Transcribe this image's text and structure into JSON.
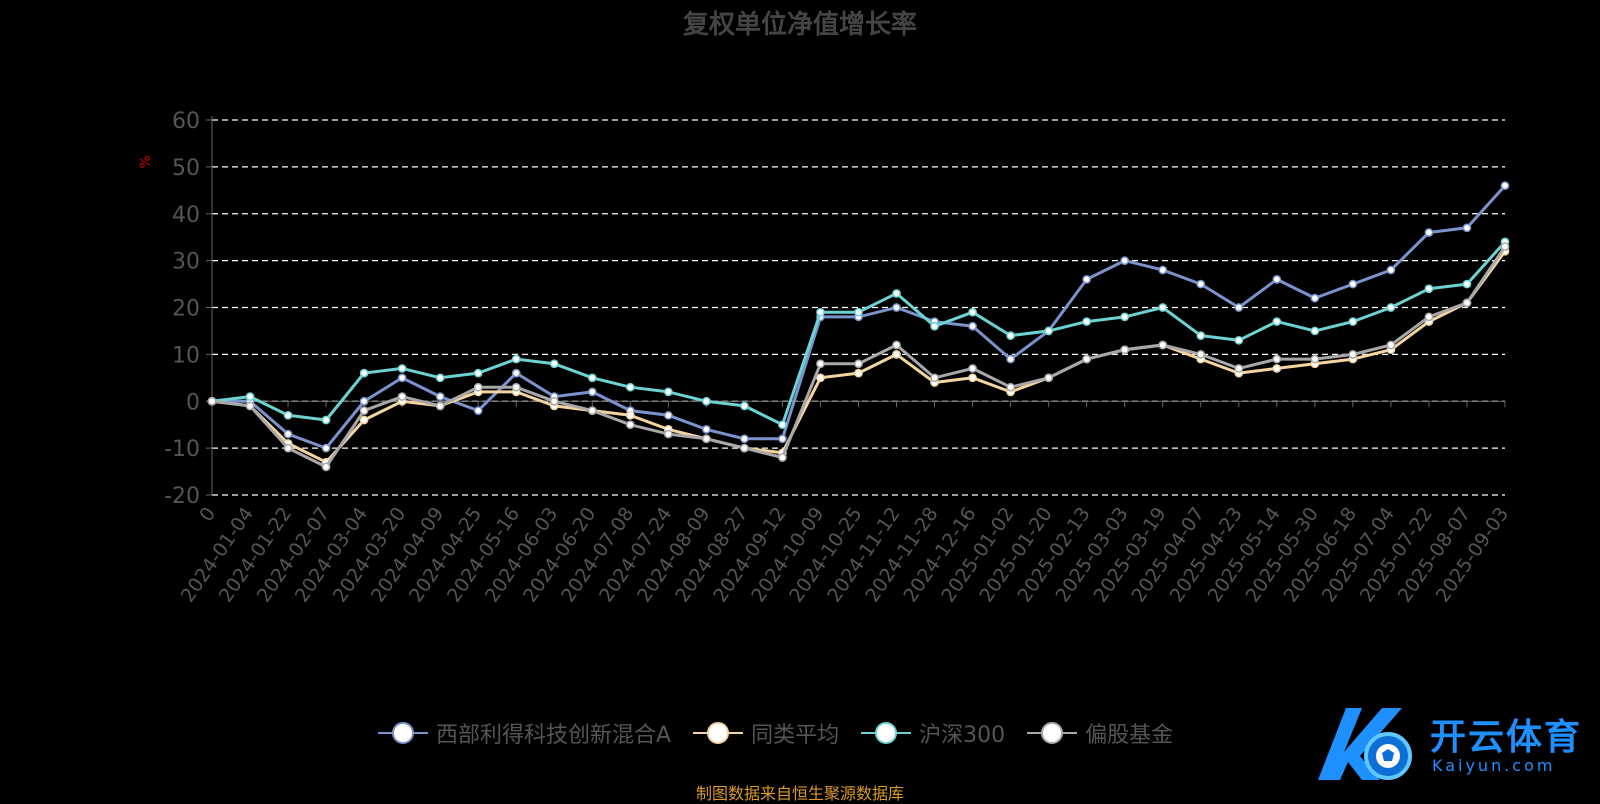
{
  "chart_data": {
    "type": "line",
    "title": "复权单位净值增长率",
    "ylabel": "%",
    "ylim": [
      -20,
      60
    ],
    "yticks": [
      -20,
      -10,
      0,
      10,
      20,
      30,
      40,
      50,
      60
    ],
    "grid": true,
    "legend_position": "bottom",
    "x": [
      "0",
      "2024-01-04",
      "2024-01-22",
      "2024-02-07",
      "2024-03-04",
      "2024-03-20",
      "2024-04-09",
      "2024-04-25",
      "2024-05-16",
      "2024-06-03",
      "2024-06-20",
      "2024-07-08",
      "2024-07-24",
      "2024-08-09",
      "2024-08-27",
      "2024-09-12",
      "2024-10-09",
      "2024-10-25",
      "2024-11-12",
      "2024-11-28",
      "2024-12-16",
      "2025-01-02",
      "2025-01-20",
      "2025-02-13",
      "2025-03-03",
      "2025-03-19",
      "2025-04-07",
      "2025-04-23",
      "2025-05-14",
      "2025-05-30",
      "2025-06-18",
      "2025-07-04",
      "2025-07-22",
      "2025-08-07",
      "2025-09-03"
    ],
    "series": [
      {
        "name": "西部利得科技创新混合A",
        "color": "#7b93cc",
        "values": [
          0,
          0,
          -7,
          -10,
          0,
          5,
          1,
          -2,
          6,
          1,
          2,
          -2,
          -3,
          -6,
          -8,
          -8,
          18,
          18,
          20,
          17,
          16,
          9,
          15,
          26,
          30,
          28,
          25,
          20,
          26,
          22,
          25,
          28,
          36,
          37,
          46
        ]
      },
      {
        "name": "同类平均",
        "color": "#f4d4a0",
        "values": [
          0,
          -1,
          -9,
          -13,
          -4,
          0,
          -1,
          2,
          2,
          -1,
          -2,
          -3,
          -6,
          -8,
          -10,
          -11,
          5,
          6,
          10,
          4,
          5,
          2,
          5,
          9,
          11,
          12,
          9,
          6,
          7,
          8,
          9,
          11,
          17,
          21,
          32
        ]
      },
      {
        "name": "沪深300",
        "color": "#6cd2d2",
        "values": [
          0,
          1,
          -3,
          -4,
          6,
          7,
          5,
          6,
          9,
          8,
          5,
          3,
          2,
          0,
          -1,
          -5,
          19,
          19,
          23,
          16,
          19,
          14,
          15,
          17,
          18,
          20,
          14,
          13,
          17,
          15,
          17,
          20,
          24,
          25,
          34
        ]
      },
      {
        "name": "偏股基金",
        "color": "#a8a8a8",
        "values": [
          0,
          -1,
          -10,
          -14,
          -2,
          1,
          -1,
          3,
          3,
          0,
          -2,
          -5,
          -7,
          -8,
          -10,
          -12,
          8,
          8,
          12,
          5,
          7,
          3,
          5,
          9,
          11,
          12,
          10,
          7,
          9,
          9,
          10,
          12,
          18,
          21,
          33
        ]
      }
    ]
  },
  "source_note": "制图数据来自恒生聚源数据库",
  "watermark": {
    "brand": "开云体育",
    "domain": "Kaiyun.com"
  }
}
